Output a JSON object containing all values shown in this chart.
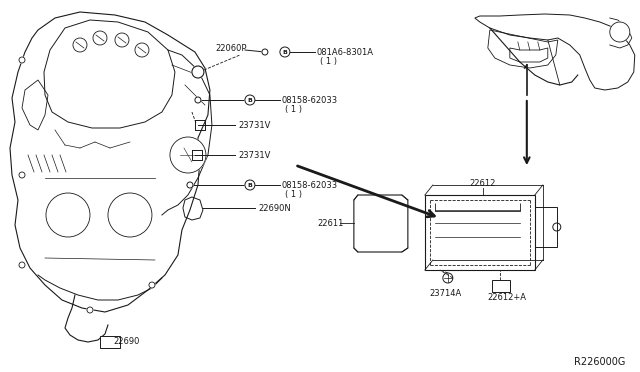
{
  "bg_color": "#ffffff",
  "line_color": "#1a1a1a",
  "diagram_number": "R226000G",
  "font_size": 6.0,
  "labels": {
    "22060P": [
      205,
      93
    ],
    "081A6_part": "081A6-8301A",
    "081A6_sub": "( 1 )",
    "08158_upper_part": "08158-62033",
    "08158_upper_sub": "( 1 )",
    "23731V_upper": "23731V",
    "23731V_lower": "23731V",
    "08158_lower_part": "08158-62033",
    "08158_lower_sub": "( 1 )",
    "22690N": "22690N",
    "22690": "22690",
    "22612": "22612",
    "22611": "22611",
    "23714A": "23714A",
    "22612A": "22612+A"
  }
}
